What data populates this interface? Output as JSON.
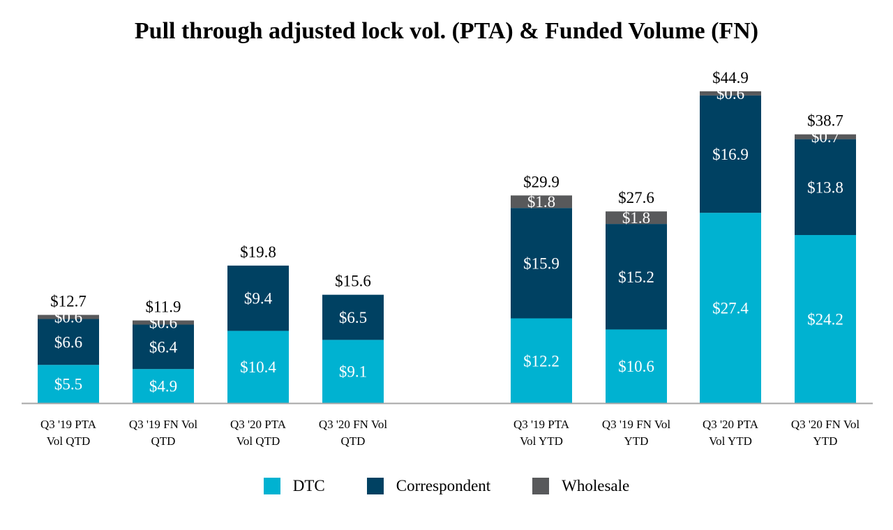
{
  "colors": {
    "dtc": "#00B2D1",
    "correspondent": "#004162",
    "wholesale": "#58595B",
    "axis": "#A6A6A6"
  },
  "chart_data": {
    "type": "bar",
    "stacked": true,
    "title": "Pull through adjusted lock vol. (PTA) & Funded Volume (FN)",
    "units": "$",
    "ylim": [
      0,
      47
    ],
    "categories": [
      {
        "line1": "Q3 '19 PTA",
        "line2": "Vol QTD"
      },
      {
        "line1": "Q3 '19 FN Vol",
        "line2": "QTD"
      },
      {
        "line1": "Q3 '20 PTA",
        "line2": "Vol QTD"
      },
      {
        "line1": "Q3 '20 FN Vol",
        "line2": "QTD"
      },
      {
        "line1": "Q3 '19 PTA",
        "line2": "Vol YTD"
      },
      {
        "line1": "Q3 '19 FN Vol",
        "line2": "YTD"
      },
      {
        "line1": "Q3 '20 PTA",
        "line2": "Vol YTD"
      },
      {
        "line1": "Q3 '20 FN Vol",
        "line2": "YTD"
      }
    ],
    "series": [
      {
        "name": "DTC",
        "color_key": "dtc",
        "values": [
          5.5,
          4.9,
          10.4,
          9.1,
          12.2,
          10.6,
          27.4,
          24.2
        ],
        "labels": [
          "$5.5",
          "$4.9",
          "$10.4",
          "$9.1",
          "$12.2",
          "$10.6",
          "$27.4",
          "$24.2"
        ]
      },
      {
        "name": "Correspondent",
        "color_key": "correspondent",
        "values": [
          6.6,
          6.4,
          9.4,
          6.5,
          15.9,
          15.2,
          16.9,
          13.8
        ],
        "labels": [
          "$6.6",
          "$6.4",
          "$9.4",
          "$6.5",
          "$15.9",
          "$15.2",
          "$16.9",
          "$13.8"
        ]
      },
      {
        "name": "Wholesale",
        "color_key": "wholesale",
        "values": [
          0.6,
          0.6,
          0,
          0,
          1.8,
          1.8,
          0.6,
          0.7
        ],
        "labels": [
          "$0.6",
          "$0.6",
          "",
          "",
          "$1.8",
          "$1.8",
          "$0.6",
          "$0.7"
        ]
      }
    ],
    "totals": [
      12.7,
      11.9,
      19.8,
      15.6,
      29.9,
      27.6,
      44.9,
      38.7
    ],
    "total_labels": [
      "$12.7",
      "$11.9",
      "$19.8",
      "$15.6",
      "$29.9",
      "$27.6",
      "$44.9",
      "$38.7"
    ],
    "legend": [
      "DTC",
      "Correspondent",
      "Wholesale"
    ],
    "legend_position": "bottom-center",
    "grid": false
  }
}
